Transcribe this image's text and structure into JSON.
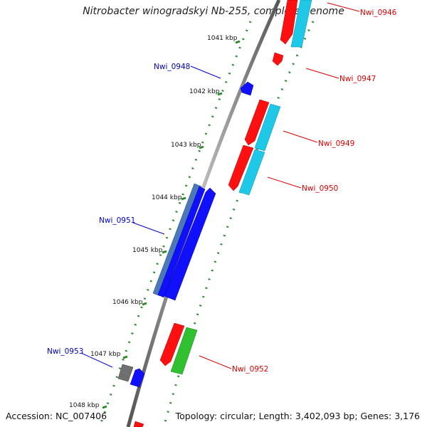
{
  "title": "Nitrobacter winogradskyi Nb-255, complete genome",
  "footer": {
    "accession": "Accession: NC_007406",
    "summary": "Topology: circular; Length: 3,402,093 bp; Genes: 3,176"
  },
  "colors": {
    "backbone": "#888888",
    "tick": "#2a8a2a",
    "red": "#ff1010",
    "cyan": "#20c8e8",
    "blue": "#1010ff",
    "steel": "#4a78b8",
    "green": "#30c030",
    "gray": "#707070",
    "label_red": "#dd0000",
    "label_blue": "#0000cc"
  },
  "ruler": {
    "labels": [
      "1041 kbp",
      "1042 kbp",
      "1043 kbp",
      "1044 kbp",
      "1045 kbp",
      "1046 kbp",
      "1047 kbp",
      "1048 kbp"
    ]
  },
  "genes": [
    {
      "label": "Nwi_0946",
      "strand": "forward",
      "color": "red"
    },
    {
      "label": "Nwi_0947",
      "strand": "forward",
      "color": "red"
    },
    {
      "label": "Nwi_0948",
      "strand": "reverse",
      "color": "blue"
    },
    {
      "label": "Nwi_0949",
      "strand": "forward",
      "color": "red"
    },
    {
      "label": "Nwi_0950",
      "strand": "forward",
      "color": "red"
    },
    {
      "label": "Nwi_0951",
      "strand": "reverse",
      "color": "blue"
    },
    {
      "label": "Nwi_0952",
      "strand": "forward",
      "color": "red"
    },
    {
      "label": "Nwi_0953",
      "strand": "reverse",
      "color": "blue"
    }
  ]
}
